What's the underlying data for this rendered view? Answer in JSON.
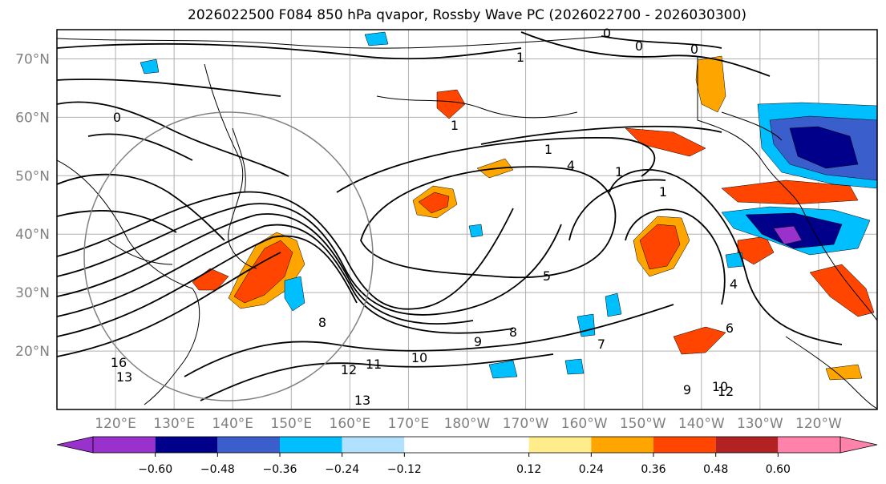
{
  "title": "2026022500 F084 850 hPa qvapor, Rossby Wave PC (2026022700 - 2026030300)",
  "map": {
    "lon_range": [
      110,
      250
    ],
    "lat_range": [
      10,
      75
    ],
    "lat_ticks": [
      {
        "value": 70,
        "label": "70°N"
      },
      {
        "value": 60,
        "label": "60°N"
      },
      {
        "value": 50,
        "label": "50°N"
      },
      {
        "value": 40,
        "label": "40°N"
      },
      {
        "value": 30,
        "label": "30°N"
      },
      {
        "value": 20,
        "label": "20°N"
      }
    ],
    "lon_ticks": [
      {
        "value": 120,
        "label": "120°E"
      },
      {
        "value": 130,
        "label": "130°E"
      },
      {
        "value": 140,
        "label": "140°E"
      },
      {
        "value": 150,
        "label": "150°E"
      },
      {
        "value": 160,
        "label": "160°E"
      },
      {
        "value": 170,
        "label": "170°E"
      },
      {
        "value": 180,
        "label": "180°W"
      },
      {
        "value": 190,
        "label": "170°W"
      },
      {
        "value": 200,
        "label": "160°W"
      },
      {
        "value": 210,
        "label": "150°W"
      },
      {
        "value": 220,
        "label": "140°W"
      },
      {
        "value": 230,
        "label": "130°W"
      },
      {
        "value": 240,
        "label": "120°W"
      }
    ],
    "contour_labels": [
      "0",
      "0",
      "0",
      "0",
      "1",
      "1",
      "1",
      "4",
      "1",
      "1",
      "8",
      "9",
      "10",
      "11",
      "12",
      "13",
      "13",
      "16",
      "9",
      "12",
      "10",
      "7",
      "8",
      "6",
      "4",
      "5"
    ],
    "colors": {
      "strong_negative": "#00008b",
      "mid_negative": "#1e90ff",
      "weak_negative": "#00bfff",
      "weak_positive": "#ffa500",
      "mid_positive": "#ff4500",
      "strong_positive": "#b22222"
    }
  },
  "colorbar": {
    "bounds": [
      -0.72,
      -0.6,
      -0.48,
      -0.36,
      -0.24,
      -0.12,
      0.12,
      0.24,
      0.36,
      0.48,
      0.6,
      0.72
    ],
    "colors": [
      "#9932cc",
      "#00008b",
      "#3a5fcd",
      "#00bfff",
      "#b0e2ff",
      "#ffffff",
      "#ffec8b",
      "#ffa500",
      "#ff4500",
      "#b22222",
      "#ff82ab"
    ],
    "extend_colors": {
      "min": "#9932cc",
      "max": "#ff82ab"
    },
    "tick_labels": [
      "−0.60",
      "−0.48",
      "−0.36",
      "−0.24",
      "−0.12",
      "0.12",
      "0.24",
      "0.36",
      "0.48",
      "0.60"
    ]
  }
}
